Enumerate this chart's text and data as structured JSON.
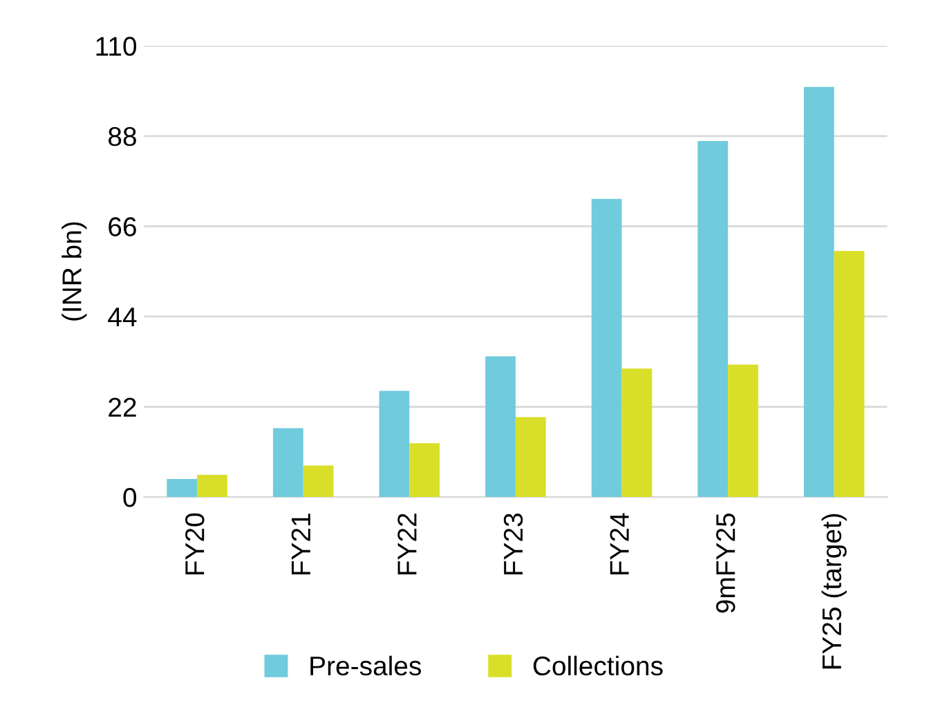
{
  "chart_data": {
    "type": "bar",
    "ylabel": "(INR bn)",
    "categories": [
      "FY20",
      "FY21",
      "FY22",
      "FY23",
      "FY24",
      "9mFY25",
      "FY25 (target)"
    ],
    "series": [
      {
        "name": "Pre-sales",
        "color": "#70cbdc",
        "values": [
          4.4,
          16.8,
          25.9,
          34.3,
          72.7,
          86.8,
          100
        ]
      },
      {
        "name": "Collections",
        "color": "#d9df28",
        "values": [
          5.4,
          7.7,
          13.1,
          19.5,
          31.3,
          32.3,
          60
        ]
      }
    ],
    "ylim": [
      0,
      110
    ],
    "yticks": [
      0,
      22,
      44,
      66,
      88,
      110
    ],
    "grid": "y",
    "legend": "bottom"
  }
}
